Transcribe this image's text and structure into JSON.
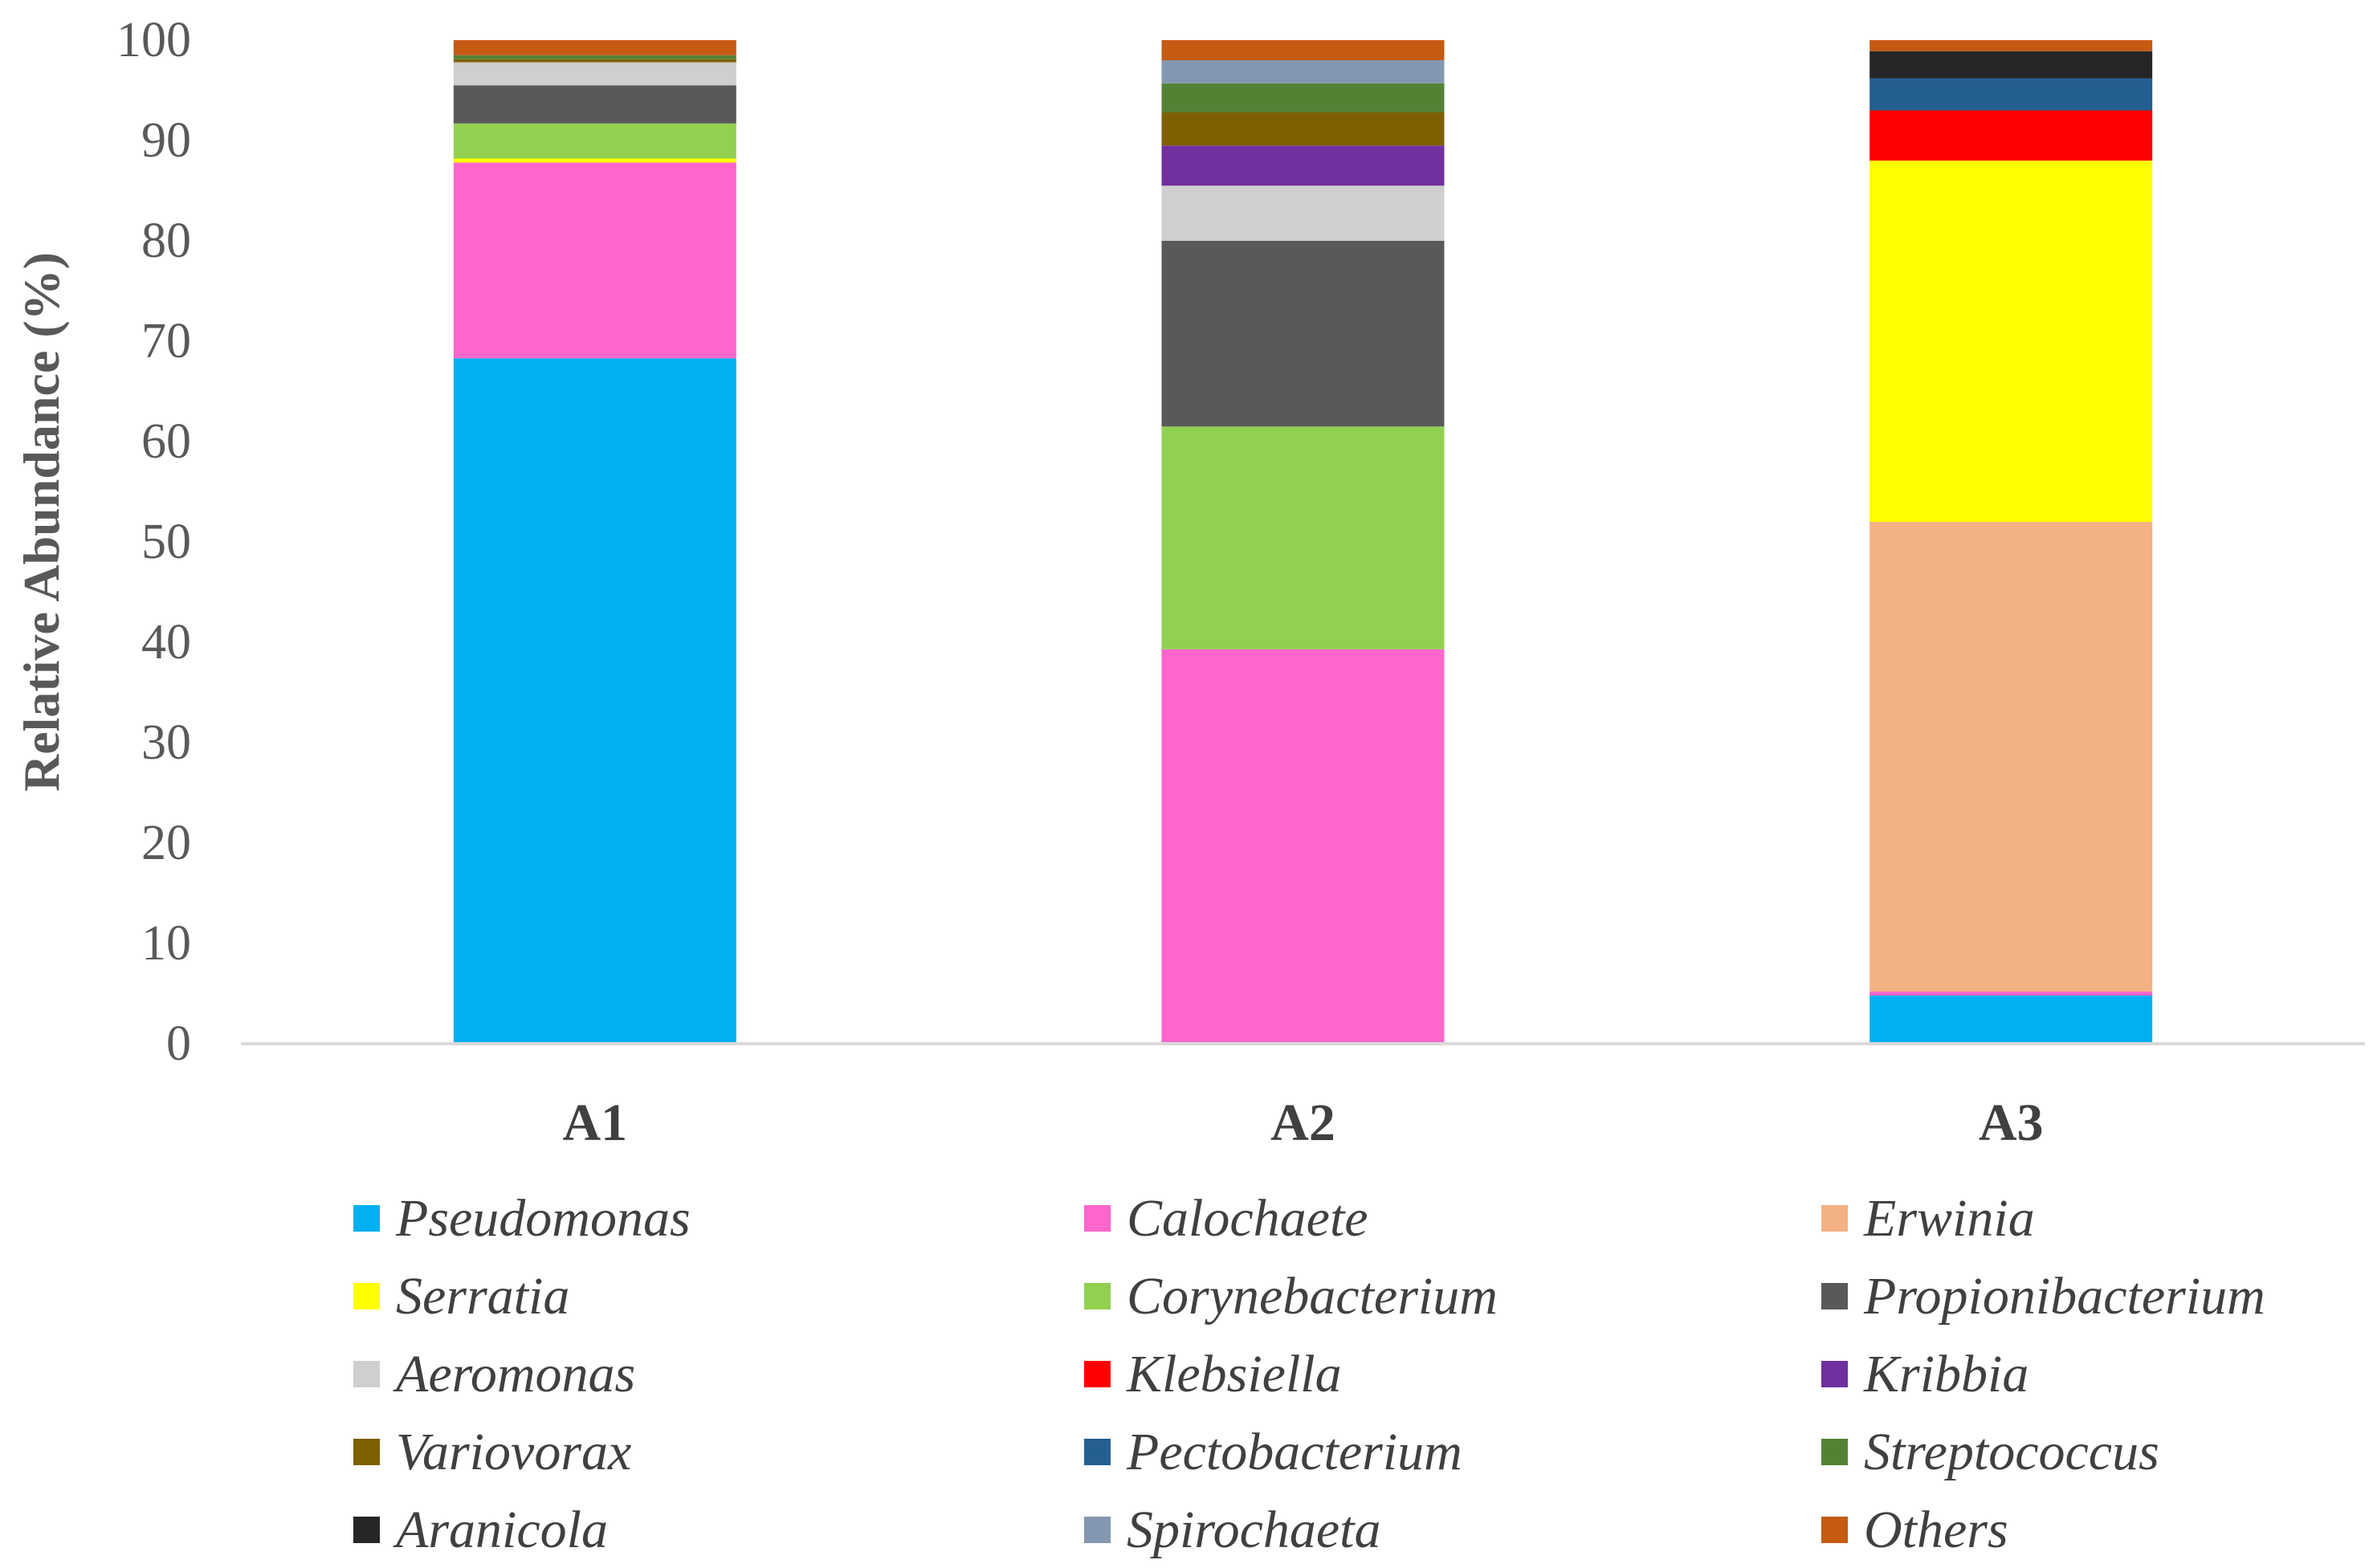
{
  "chart_data": {
    "type": "bar",
    "stacked": true,
    "title": "",
    "xlabel": "",
    "ylabel": "Relative Abundance (%)",
    "ylim": [
      0,
      100
    ],
    "yticks": [
      0,
      10,
      20,
      30,
      40,
      50,
      60,
      70,
      80,
      90,
      100
    ],
    "categories": [
      "A1",
      "A2",
      "A3"
    ],
    "legend_position": "bottom",
    "series": [
      {
        "name": "Pseudomonas",
        "color": "#00B0F0",
        "values": [
          68.3,
          0.0,
          4.8
        ]
      },
      {
        "name": "Calochaete",
        "color": "#FF66CC",
        "values": [
          19.5,
          39.3,
          0.4
        ]
      },
      {
        "name": "Erwinia",
        "color": "#F4B183",
        "values": [
          0.0,
          0.0,
          46.8
        ]
      },
      {
        "name": "Serratia",
        "color": "#FFFF00",
        "values": [
          0.4,
          0.0,
          36.0
        ]
      },
      {
        "name": "Corynebacterium",
        "color": "#92D050",
        "values": [
          3.5,
          22.2,
          0.0
        ]
      },
      {
        "name": "Propionibacterium",
        "color": "#595959",
        "values": [
          3.8,
          18.5,
          0.0
        ]
      },
      {
        "name": "Aeromonas",
        "color": "#D0CECE",
        "values": [
          2.3,
          5.5,
          0.0
        ]
      },
      {
        "name": "Klebsiella",
        "color": "#FF0000",
        "values": [
          0.0,
          0.0,
          5.0
        ]
      },
      {
        "name": "Kribbia",
        "color": "#7030A0",
        "values": [
          0.0,
          4.0,
          0.0
        ]
      },
      {
        "name": "Variovorax",
        "color": "#7F6000",
        "values": [
          0.3,
          3.3,
          0.0
        ]
      },
      {
        "name": "Pectobacterium",
        "color": "#255E91",
        "values": [
          0.0,
          0.0,
          3.2
        ]
      },
      {
        "name": "Streptococcus",
        "color": "#548235",
        "values": [
          0.4,
          2.9,
          0.0
        ]
      },
      {
        "name": "Aranicola",
        "color": "#262626",
        "values": [
          0.0,
          0.0,
          2.7
        ]
      },
      {
        "name": "Spirochaeta",
        "color": "#8497B0",
        "values": [
          0.0,
          2.3,
          0.0
        ]
      },
      {
        "name": "Others",
        "color": "#C55A11",
        "values": [
          1.5,
          2.0,
          1.1
        ]
      }
    ]
  }
}
